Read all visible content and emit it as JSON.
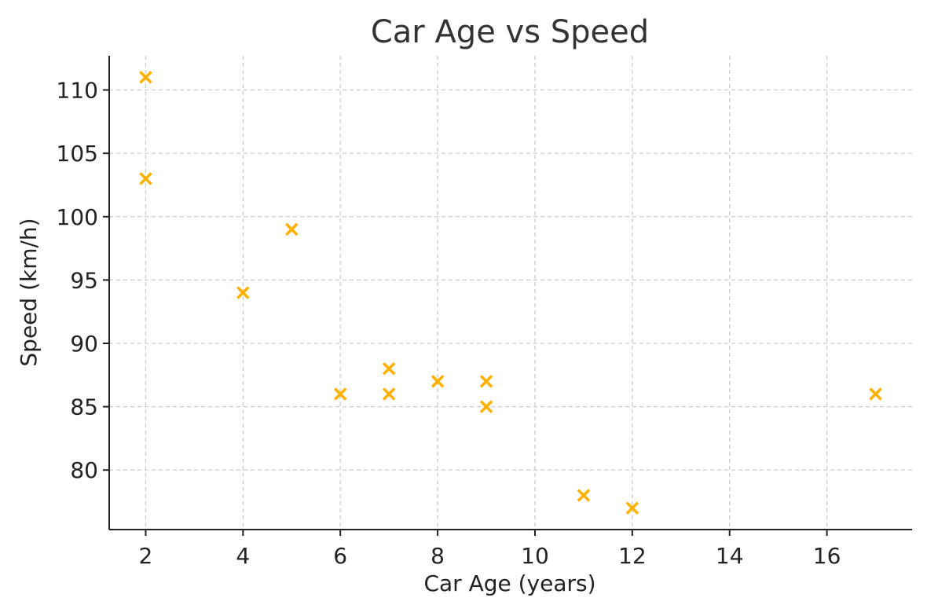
{
  "chart_data": {
    "type": "scatter",
    "title": "Car Age vs Speed",
    "xlabel": "Car Age (years)",
    "ylabel": "Speed (km/h)",
    "xlim": [
      1.25,
      17.75
    ],
    "ylim": [
      75.3,
      112.7
    ],
    "xticks": [
      2,
      4,
      6,
      8,
      10,
      12,
      14,
      16
    ],
    "yticks": [
      80,
      85,
      90,
      95,
      100,
      105,
      110
    ],
    "grid": true,
    "marker": "x",
    "color": "#FFB000",
    "series": [
      {
        "points": [
          {
            "x": 2,
            "y": 111
          },
          {
            "x": 2,
            "y": 103
          },
          {
            "x": 4,
            "y": 94
          },
          {
            "x": 5,
            "y": 99
          },
          {
            "x": 6,
            "y": 86
          },
          {
            "x": 7,
            "y": 88
          },
          {
            "x": 7,
            "y": 86
          },
          {
            "x": 8,
            "y": 87
          },
          {
            "x": 9,
            "y": 87
          },
          {
            "x": 9,
            "y": 85
          },
          {
            "x": 11,
            "y": 78
          },
          {
            "x": 12,
            "y": 77
          },
          {
            "x": 17,
            "y": 86
          }
        ]
      }
    ]
  }
}
